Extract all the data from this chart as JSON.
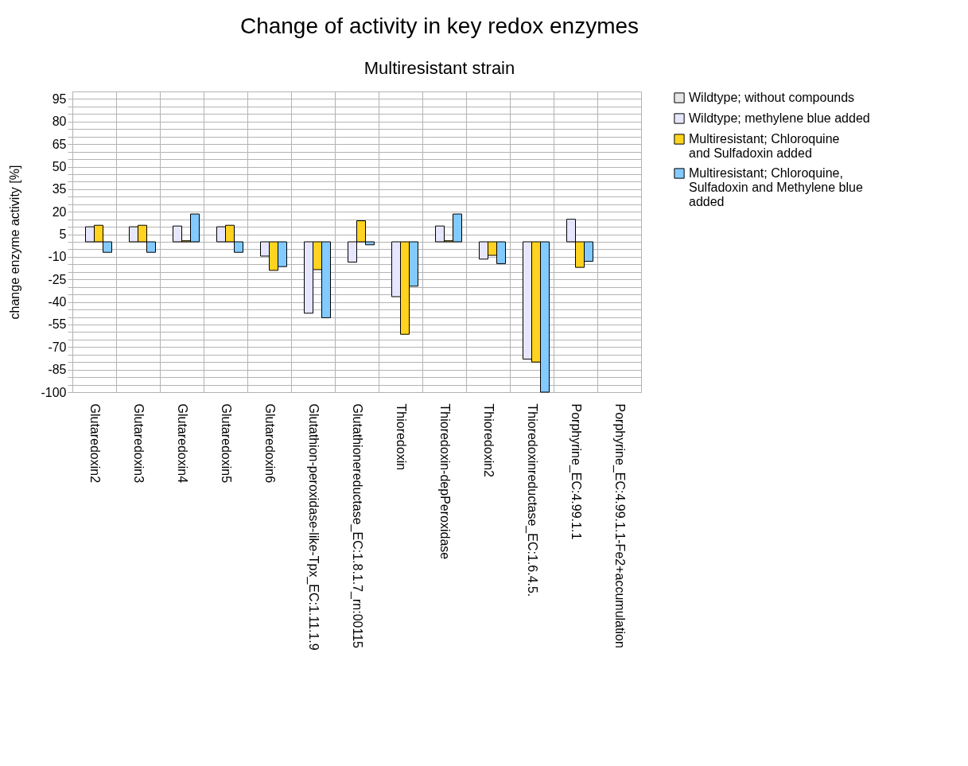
{
  "chart_data": {
    "type": "bar",
    "title": "Change of activity in key redox enzymes",
    "subtitle": "Multiresistant strain",
    "ylabel": "change enzyme activity [%]",
    "categories": [
      "Glutaredoxin2",
      "Glutaredoxin3",
      "Glutaredoxin4",
      "Glutaredoxin5",
      "Glutaredoxin6",
      "Glutathion-peroxidase-like-Tpx_EC:1.11.1.9",
      "Glutathionereductase_EC:1.8.1.7_rn:00115",
      "Thioredoxin",
      "Thioredoxin-depPeroxidase",
      "Thioredoxin2",
      "Thioredoxinreductase_EC:1.6.4.5.",
      "Porphyrine_EC:4.99.1.1",
      "Porphyrine_EC:4.99.1.1-Fe2+accumulation"
    ],
    "series": [
      {
        "name": "Wildtype; without compounds",
        "color": "#e6e6e6",
        "values": [
          null,
          null,
          null,
          null,
          null,
          null,
          null,
          null,
          null,
          null,
          null,
          null,
          null
        ]
      },
      {
        "name": "Wildtype; methylene blue added",
        "color": "#e6e6ff",
        "values": [
          10,
          10,
          10.5,
          10,
          -9.5,
          -47.5,
          -13.5,
          -36.5,
          10.5,
          -11.5,
          -78,
          15,
          null
        ]
      },
      {
        "name": "Multiresistant; Chloroquine and Sulfadoxin added",
        "color": "#ffd320",
        "values": [
          11,
          11,
          0.7,
          11,
          -19,
          -18.5,
          14,
          -61.5,
          0.7,
          -9,
          -80,
          -17,
          null
        ]
      },
      {
        "name": "Multiresistant; Chloroquine, Sulfadoxin and Methylene blue added",
        "color": "#83caff",
        "values": [
          -7,
          -7,
          18.5,
          -7,
          -16.5,
          -50.5,
          -2,
          -29.5,
          18.5,
          -14.5,
          -100,
          -13,
          null
        ]
      }
    ],
    "ylim": [
      -100,
      100
    ],
    "yticks": [
      -100,
      {
        "value": -95,
        "label": null
      },
      {
        "value": -90,
        "label": null
      },
      -85,
      {
        "value": -80,
        "label": null
      },
      {
        "value": -75,
        "label": null
      },
      -70,
      {
        "value": -65,
        "label": null
      },
      {
        "value": -60,
        "label": null
      },
      -55,
      {
        "value": -50,
        "label": null
      },
      {
        "value": -45,
        "label": null
      },
      -40,
      {
        "value": -35,
        "label": null
      },
      {
        "value": -30,
        "label": null
      },
      -25,
      {
        "value": -20,
        "label": null
      },
      {
        "value": -15,
        "label": null
      },
      -10,
      {
        "value": -5,
        "label": null
      },
      {
        "value": 0,
        "label": null
      },
      5,
      {
        "value": 10,
        "label": null
      },
      {
        "value": 15,
        "label": null
      },
      20,
      {
        "value": 25,
        "label": null
      },
      {
        "value": 30,
        "label": null
      },
      35,
      {
        "value": 40,
        "label": null
      },
      {
        "value": 45,
        "label": null
      },
      50,
      {
        "value": 55,
        "label": null
      },
      {
        "value": 60,
        "label": null
      },
      65,
      {
        "value": 70,
        "label": null
      },
      {
        "value": 75,
        "label": null
      },
      80,
      {
        "value": 85,
        "label": null
      },
      {
        "value": 90,
        "label": null
      },
      95
    ],
    "grid": true,
    "legend": "right"
  }
}
